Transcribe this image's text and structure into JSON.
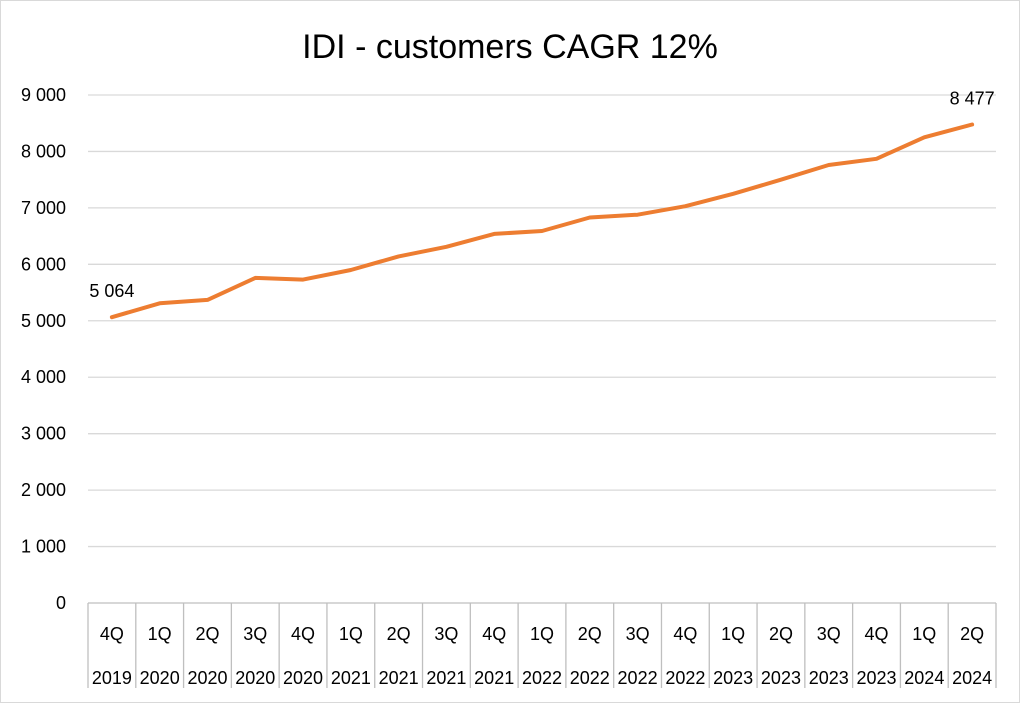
{
  "chart_data": {
    "type": "line",
    "title": "IDI - customers CAGR 12%",
    "xlabel": "",
    "ylabel": "",
    "ylim": [
      0,
      9000
    ],
    "yticks": [
      0,
      1000,
      2000,
      3000,
      4000,
      5000,
      6000,
      7000,
      8000,
      9000
    ],
    "ytick_labels": [
      "0",
      "1 000",
      "2 000",
      "3 000",
      "4 000",
      "5 000",
      "6 000",
      "7 000",
      "8 000",
      "9 000"
    ],
    "grid": "horizontal",
    "legend": "none",
    "colors": {
      "line": "#ed7d31",
      "grid": "#d9d9d9",
      "axis": "#bfbfbf",
      "text": "#000000"
    },
    "categories": [
      {
        "quarter": "4Q",
        "year": "2019"
      },
      {
        "quarter": "1Q",
        "year": "2020"
      },
      {
        "quarter": "2Q",
        "year": "2020"
      },
      {
        "quarter": "3Q",
        "year": "2020"
      },
      {
        "quarter": "4Q",
        "year": "2020"
      },
      {
        "quarter": "1Q",
        "year": "2021"
      },
      {
        "quarter": "2Q",
        "year": "2021"
      },
      {
        "quarter": "3Q",
        "year": "2021"
      },
      {
        "quarter": "4Q",
        "year": "2021"
      },
      {
        "quarter": "1Q",
        "year": "2022"
      },
      {
        "quarter": "2Q",
        "year": "2022"
      },
      {
        "quarter": "3Q",
        "year": "2022"
      },
      {
        "quarter": "4Q",
        "year": "2022"
      },
      {
        "quarter": "1Q",
        "year": "2023"
      },
      {
        "quarter": "2Q",
        "year": "2023"
      },
      {
        "quarter": "3Q",
        "year": "2023"
      },
      {
        "quarter": "4Q",
        "year": "2023"
      },
      {
        "quarter": "1Q",
        "year": "2024"
      },
      {
        "quarter": "2Q",
        "year": "2024"
      }
    ],
    "series": [
      {
        "values": [
          5064,
          5310,
          5370,
          5760,
          5730,
          5900,
          6140,
          6310,
          6540,
          6590,
          6830,
          6880,
          7030,
          7250,
          7500,
          7760,
          7870,
          8250,
          8477
        ],
        "data_labels": [
          {
            "index": 0,
            "text": "5 064"
          },
          {
            "index": 18,
            "text": "8 477"
          }
        ]
      }
    ]
  }
}
